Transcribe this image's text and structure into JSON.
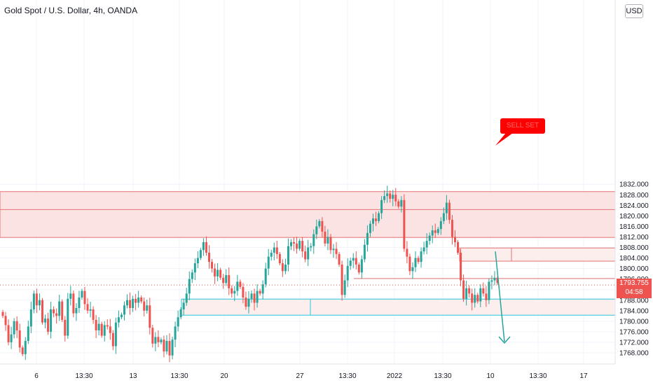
{
  "header": {
    "title": "Gold Spot / U.S. Dollar, 4h, OANDA",
    "currency_button": "USD"
  },
  "price_tag": {
    "price": "1793.755",
    "countdown": "04:58"
  },
  "callout": {
    "text": "SELL SET"
  },
  "colors": {
    "up": "#26a69a",
    "down": "#ef5350",
    "zone_fill": "#fbe3e4",
    "zone_line": "#e57373",
    "support_line": "#26c6da",
    "arrow": "#26a69a"
  },
  "chart_data": {
    "type": "candlestick",
    "symbol": "Gold Spot / U.S. Dollar",
    "timeframe": "4h",
    "y_axis": {
      "ticks": [
        "1832.000",
        "1828.000",
        "1824.000",
        "1820.000",
        "1816.000",
        "1812.000",
        "1808.000",
        "1804.000",
        "1800.000",
        "1796.000",
        "1792.000",
        "1788.000",
        "1784.000",
        "1780.000",
        "1776.000",
        "1772.000",
        "1768.000"
      ],
      "ylim": [
        1764.5,
        1834
      ]
    },
    "x_axis": {
      "ticks": [
        "6",
        "13:30",
        "13",
        "13:30",
        "20",
        "27",
        "13:30",
        "2022",
        "13:30",
        "10",
        "13:30",
        "17"
      ]
    },
    "last_price": 1793.755,
    "closes": [
      1782.0,
      1778.5,
      1772.0,
      1775.0,
      1780.0,
      1776.5,
      1770.0,
      1767.5,
      1772.5,
      1778.0,
      1784.5,
      1790.5,
      1786.0,
      1788.0,
      1779.5,
      1781.0,
      1776.0,
      1784.5,
      1783.0,
      1782.0,
      1787.5,
      1780.5,
      1774.5,
      1788.5,
      1790.5,
      1783.0,
      1785.0,
      1789.0,
      1791.5,
      1786.5,
      1784.0,
      1784.5,
      1780.5,
      1776.5,
      1779.0,
      1774.5,
      1778.5,
      1778.0,
      1775.5,
      1770.5,
      1779.5,
      1781.5,
      1782.5,
      1786.0,
      1788.0,
      1785.0,
      1788.5,
      1787.0,
      1789.0,
      1787.5,
      1784.0,
      1786.0,
      1777.5,
      1771.5,
      1774.0,
      1772.0,
      1773.0,
      1768.5,
      1772.5,
      1767.0,
      1773.0,
      1778.0,
      1781.5,
      1784.5,
      1787.0,
      1790.5,
      1796.0,
      1798.5,
      1802.0,
      1804.0,
      1807.0,
      1810.0,
      1806.0,
      1802.5,
      1800.0,
      1797.0,
      1799.5,
      1796.5,
      1794.5,
      1797.5,
      1792.5,
      1790.5,
      1791.5,
      1795.0,
      1793.0,
      1789.0,
      1785.5,
      1788.5,
      1790.5,
      1787.0,
      1791.5,
      1790.5,
      1794.0,
      1800.0,
      1804.5,
      1806.0,
      1808.0,
      1805.5,
      1802.0,
      1799.0,
      1801.5,
      1808.5,
      1810.0,
      1809.5,
      1807.5,
      1810.5,
      1806.5,
      1803.5,
      1808.0,
      1808.5,
      1813.0,
      1816.0,
      1818.0,
      1814.0,
      1809.5,
      1812.0,
      1807.0,
      1807.5,
      1805.5,
      1801.5,
      1790.0,
      1795.5,
      1801.0,
      1803.0,
      1804.0,
      1801.5,
      1798.5,
      1803.5,
      1809.0,
      1813.5,
      1817.0,
      1819.0,
      1818.0,
      1821.0,
      1826.0,
      1827.5,
      1828.5,
      1826.5,
      1828.0,
      1825.5,
      1823.5,
      1826.0,
      1807.5,
      1804.5,
      1799.0,
      1800.5,
      1804.0,
      1802.5,
      1806.5,
      1808.0,
      1810.5,
      1812.5,
      1814.5,
      1813.5,
      1815.0,
      1818.0,
      1821.0,
      1825.0,
      1818.5,
      1812.0,
      1810.0,
      1806.0,
      1795.5,
      1788.5,
      1792.5,
      1790.5,
      1787.0,
      1790.0,
      1787.5,
      1792.5,
      1790.5,
      1788.0,
      1795.0,
      1795.5,
      1796.5,
      1794.5
    ]
  }
}
